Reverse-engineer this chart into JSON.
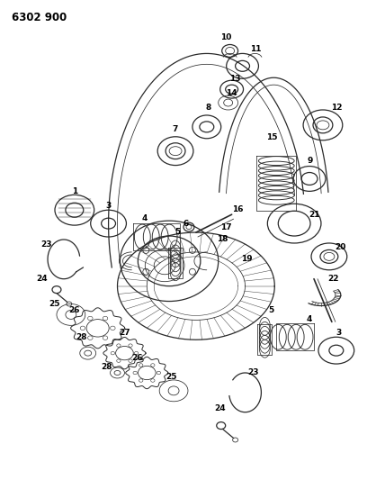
{
  "title": "6302 900",
  "bg_color": "#ffffff",
  "fig_width": 4.08,
  "fig_height": 5.33,
  "dpi": 100,
  "gray": "#2a2a2a",
  "lw_main": 0.9,
  "lw_thin": 0.55,
  "lw_heavy": 1.2
}
